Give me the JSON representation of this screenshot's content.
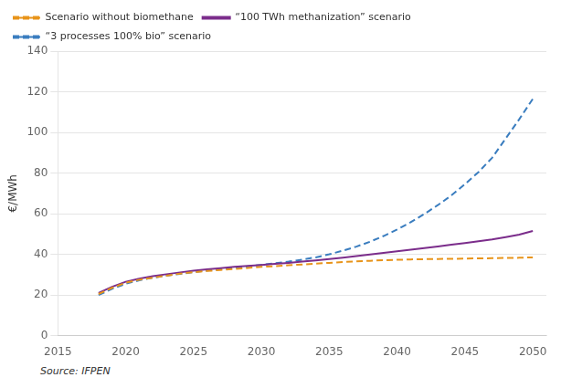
{
  "chart_data": {
    "type": "line",
    "ylabel": "€/MWh",
    "source": "Source: IFPEN",
    "xlim": [
      2015,
      2051
    ],
    "ylim": [
      0,
      140
    ],
    "xticks": [
      2015,
      2020,
      2025,
      2030,
      2035,
      2040,
      2045,
      2050
    ],
    "yticks": [
      0,
      20,
      40,
      60,
      80,
      100,
      120,
      140
    ],
    "grid": "y",
    "legend": "upper left",
    "x": [
      2018,
      2019,
      2020,
      2021,
      2022,
      2023,
      2024,
      2025,
      2026,
      2027,
      2028,
      2029,
      2030,
      2031,
      2032,
      2033,
      2034,
      2035,
      2036,
      2037,
      2038,
      2039,
      2040,
      2041,
      2042,
      2043,
      2044,
      2045,
      2046,
      2047,
      2048,
      2049,
      2050
    ],
    "series": [
      {
        "name": "Scenario without biomethane",
        "color": "#E8941A",
        "line_style": "dashed",
        "values": [
          20.5,
          23.5,
          26.0,
          27.5,
          28.5,
          29.5,
          30.5,
          31.2,
          31.8,
          32.3,
          32.8,
          33.3,
          33.8,
          34.2,
          34.6,
          35.0,
          35.4,
          35.8,
          36.2,
          36.5,
          36.8,
          37.1,
          37.3,
          37.5,
          37.6,
          37.7,
          37.8,
          37.9,
          38.0,
          38.1,
          38.2,
          38.3,
          38.5
        ]
      },
      {
        "name": "“100 TWh methanization” scenario",
        "color": "#7B2D8B",
        "line_style": "solid",
        "values": [
          21.0,
          24.0,
          26.5,
          28.0,
          29.2,
          30.2,
          31.1,
          31.9,
          32.6,
          33.2,
          33.8,
          34.3,
          34.8,
          35.3,
          35.8,
          36.4,
          37.0,
          37.7,
          38.4,
          39.1,
          39.9,
          40.7,
          41.5,
          42.3,
          43.1,
          43.9,
          44.7,
          45.5,
          46.4,
          47.3,
          48.5,
          49.7,
          51.5
        ]
      },
      {
        "name": "“3 processes 100% bio” scenario",
        "color": "#3A7DBF",
        "line_style": "dashed",
        "values": [
          20.0,
          23.0,
          25.5,
          27.2,
          28.5,
          29.5,
          30.4,
          31.2,
          32.0,
          32.7,
          33.4,
          34.1,
          34.8,
          35.6,
          36.4,
          37.4,
          38.5,
          40.0,
          41.8,
          43.8,
          46.2,
          49.0,
          52.2,
          55.8,
          59.8,
          64.2,
          69.0,
          74.5,
          80.5,
          87.5,
          97.0,
          106.5,
          116.5
        ]
      }
    ]
  }
}
